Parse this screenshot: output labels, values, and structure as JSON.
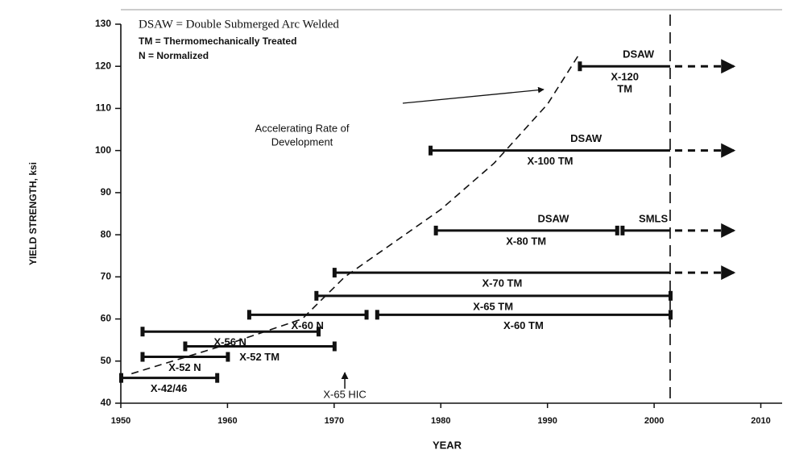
{
  "chart_data": {
    "type": "range",
    "notes": [
      "DSAW = Double Submerged Arc Welded",
      "TM = Thermomechanically Treated",
      "N = Normalized"
    ],
    "xlabel": "YEAR",
    "ylabel": "YIELD STRENGTH, ksi",
    "xlim": [
      1950,
      2012
    ],
    "xticks": [
      1950,
      1960,
      1970,
      1980,
      1990,
      2000,
      2010
    ],
    "ylim": [
      40,
      130
    ],
    "yticks": [
      40,
      50,
      60,
      70,
      80,
      90,
      100,
      110,
      120,
      130
    ],
    "color": "#111111",
    "segments": [
      {
        "label": "X-42/46",
        "y": 46,
        "x": [
          1950,
          1959
        ]
      },
      {
        "label": "X-52 N",
        "y": 51,
        "x": [
          1952,
          1960
        ]
      },
      {
        "label": "X-52 TM",
        "y": 53.5,
        "x": [
          1956,
          1970
        ]
      },
      {
        "label": "X-56 N",
        "y": 57,
        "x": [
          1952,
          1968.5
        ]
      },
      {
        "label": "X-60 N",
        "y": 61,
        "x": [
          1962,
          1973
        ]
      },
      {
        "label": "X-60 TM",
        "y": 61,
        "x": [
          1974,
          2001.5
        ]
      },
      {
        "label": "X-65 TM",
        "y": 65.5,
        "x": [
          1968.3,
          2001.5
        ]
      },
      {
        "label": "X-70 TM",
        "y": 71,
        "x": [
          1970,
          2001.5
        ],
        "arrow_to": 2007.5
      },
      {
        "label": "X-80 TM",
        "top_label": "DSAW",
        "y": 81,
        "x": [
          1979.5,
          1996.5
        ]
      },
      {
        "top_label": "SMLS",
        "y": 81,
        "x": [
          1997,
          2001.5
        ],
        "arrow_to": 2007.5
      },
      {
        "label": "X-100 TM",
        "top_label": "DSAW",
        "y": 100,
        "x": [
          1979,
          2001.5
        ],
        "arrow_to": 2007.5
      },
      {
        "label": "X-120",
        "label2": "TM",
        "top_label": "DSAW",
        "y": 120,
        "x": [
          1993,
          2001.5
        ],
        "arrow_to": 2007.5
      }
    ],
    "trend": {
      "label": [
        "Accelerating Rate of",
        "Development"
      ],
      "x": [
        1951,
        1960,
        1967,
        1971,
        1980,
        1985,
        1990,
        1993
      ],
      "y": [
        47,
        54,
        60,
        70,
        86,
        97,
        111,
        123
      ]
    },
    "reference_x": 2001.5,
    "annotation": {
      "text": "X-65 HIC",
      "x": 1971
    }
  }
}
